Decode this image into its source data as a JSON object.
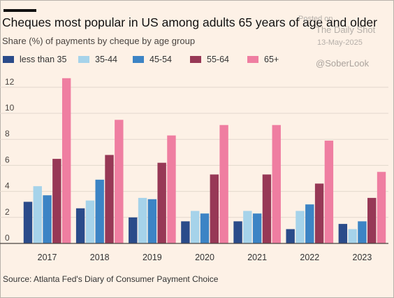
{
  "header": {
    "title": "Cheques most popular in US among adults 65 years of age and older",
    "subtitle": "Share (%) of payments by cheque by age group"
  },
  "watermark": {
    "posted": "Posted on",
    "site": "The Daily Shot",
    "date": "13-May-2025",
    "handle": "@SoberLook"
  },
  "footer": {
    "source": "Source: Atlanta Fed's Diary of Consumer Payment Choice"
  },
  "colors": {
    "background": "#fdf1e6",
    "gridline": "#e3d8cd",
    "baseline": "#4a4440",
    "less_than_35": "#2a4b8a",
    "35_44": "#a6d3ea",
    "45_54": "#3c84c5",
    "55_64": "#973856",
    "65_plus": "#ef7ea1"
  },
  "chart_data": {
    "type": "bar",
    "title": "Cheques most popular in US among adults 65 years of age and older",
    "subtitle": "Share (%) of payments by cheque by age group",
    "categories": [
      "2017",
      "2018",
      "2019",
      "2020",
      "2021",
      "2022",
      "2023"
    ],
    "series": [
      {
        "name": "less than 35",
        "color": "#2a4b8a",
        "values": [
          3.2,
          2.7,
          2.0,
          1.7,
          1.7,
          1.1,
          1.5
        ]
      },
      {
        "name": "35-44",
        "color": "#a6d3ea",
        "values": [
          4.4,
          3.3,
          3.5,
          2.5,
          2.5,
          2.5,
          1.1
        ]
      },
      {
        "name": "45-54",
        "color": "#3c84c5",
        "values": [
          3.7,
          4.9,
          3.4,
          2.3,
          2.3,
          3.0,
          1.7
        ]
      },
      {
        "name": "55-64",
        "color": "#973856",
        "values": [
          6.5,
          6.8,
          6.2,
          5.3,
          5.3,
          4.6,
          3.5
        ]
      },
      {
        "name": "65+",
        "color": "#ef7ea1",
        "values": [
          12.7,
          9.5,
          8.3,
          9.1,
          9.1,
          7.9,
          5.5
        ]
      }
    ],
    "xlabel": "",
    "ylabel": "",
    "ylim": [
      0,
      13
    ],
    "yticks": [
      0,
      2,
      4,
      6,
      8,
      10,
      12
    ],
    "grid": true,
    "legend": "top-left"
  }
}
